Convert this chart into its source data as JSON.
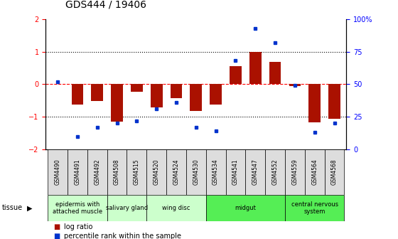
{
  "title": "GDS444 / 19406",
  "samples": [
    "GSM4490",
    "GSM4491",
    "GSM4492",
    "GSM4508",
    "GSM4515",
    "GSM4520",
    "GSM4524",
    "GSM4530",
    "GSM4534",
    "GSM4541",
    "GSM4547",
    "GSM4552",
    "GSM4559",
    "GSM4564",
    "GSM4568"
  ],
  "log_ratio": [
    0.0,
    -0.62,
    -0.52,
    -1.15,
    -0.22,
    -0.72,
    -0.42,
    -0.82,
    -0.62,
    0.55,
    1.0,
    0.68,
    -0.05,
    -1.18,
    -1.05
  ],
  "percentile": [
    52,
    10,
    17,
    20,
    22,
    31,
    36,
    17,
    14,
    68,
    93,
    82,
    49,
    13,
    20
  ],
  "tissue_groups": [
    {
      "label": "epidermis with\nattached muscle",
      "start": 0,
      "end": 3,
      "color": "#ccffcc"
    },
    {
      "label": "salivary gland",
      "start": 3,
      "end": 5,
      "color": "#ccffcc"
    },
    {
      "label": "wing disc",
      "start": 5,
      "end": 8,
      "color": "#ccffcc"
    },
    {
      "label": "midgut",
      "start": 8,
      "end": 12,
      "color": "#55ee55"
    },
    {
      "label": "central nervous\nsystem",
      "start": 12,
      "end": 15,
      "color": "#55ee55"
    }
  ],
  "bar_color": "#aa1100",
  "dot_color": "#0033cc",
  "ylim": [
    -2,
    2
  ],
  "y2lim": [
    0,
    100
  ],
  "yticks": [
    -2,
    -1,
    0,
    1,
    2
  ],
  "y2ticks": [
    0,
    25,
    50,
    75,
    100
  ],
  "cell_bg": "#dddddd",
  "light_green": "#ccffcc",
  "bright_green": "#55ee55"
}
